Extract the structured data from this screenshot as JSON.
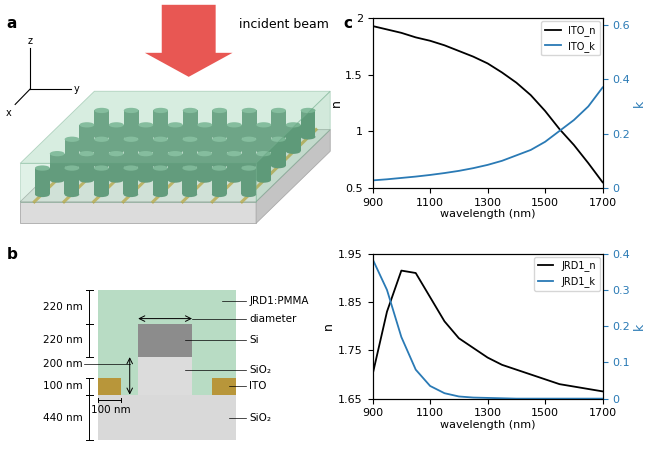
{
  "panel_labels": [
    "a",
    "b",
    "c"
  ],
  "schematic": {
    "beam_label": "incident beam",
    "axis_labels": [
      "z",
      "x",
      "y"
    ]
  },
  "cross_section": {
    "left_dimensions": [
      "220 nm",
      "220 nm",
      "200 nm",
      "100 nm",
      "440 nm"
    ],
    "bottom_dimension": "100 nm",
    "labels": [
      "JRD1:PMMA",
      "diameter",
      "Si",
      "SiO₂",
      "ITO",
      "SiO₂"
    ]
  },
  "chart_data": [
    {
      "type": "line",
      "x": [
        900,
        950,
        1000,
        1050,
        1100,
        1150,
        1200,
        1250,
        1300,
        1350,
        1400,
        1450,
        1500,
        1550,
        1600,
        1650,
        1700
      ],
      "xlim": [
        900,
        1700
      ],
      "xticks": [
        900,
        1100,
        1300,
        1500,
        1700
      ],
      "x_label": "wavelength (nm)",
      "y_label": "n",
      "y2_label": "k",
      "ylim": [
        0.5,
        2
      ],
      "yticks": [
        0.5,
        1,
        1.5,
        2
      ],
      "y2lim": [
        0,
        0.625
      ],
      "y2ticks": [
        0,
        0.2,
        0.4,
        0.6
      ],
      "legend": "upper right",
      "series": [
        {
          "name": "ITO_n",
          "color": "#000000",
          "values": [
            1.93,
            1.9,
            1.87,
            1.83,
            1.8,
            1.76,
            1.71,
            1.66,
            1.6,
            1.52,
            1.43,
            1.32,
            1.18,
            1.02,
            0.88,
            0.72,
            0.55
          ]
        },
        {
          "name": "ITO_k",
          "color": "#2a7ab5",
          "axis": "y2",
          "values": [
            0.028,
            0.032,
            0.037,
            0.042,
            0.048,
            0.055,
            0.063,
            0.073,
            0.085,
            0.1,
            0.12,
            0.14,
            0.17,
            0.21,
            0.25,
            0.3,
            0.37
          ]
        }
      ]
    },
    {
      "type": "line",
      "x": [
        900,
        950,
        1000,
        1050,
        1100,
        1150,
        1200,
        1250,
        1300,
        1350,
        1400,
        1450,
        1500,
        1550,
        1600,
        1650,
        1700
      ],
      "xlim": [
        900,
        1700
      ],
      "xticks": [
        900,
        1100,
        1300,
        1500,
        1700
      ],
      "x_label": "wavelength (nm)",
      "y_label": "n",
      "y2_label": "k",
      "ylim": [
        1.65,
        1.95
      ],
      "yticks": [
        1.65,
        1.75,
        1.85,
        1.95
      ],
      "y2lim": [
        0,
        0.4
      ],
      "y2ticks": [
        0,
        0.1,
        0.2,
        0.3,
        0.4
      ],
      "legend": "upper right",
      "series": [
        {
          "name": "JRD1_n",
          "color": "#000000",
          "values": [
            1.7,
            1.83,
            1.915,
            1.91,
            1.86,
            1.81,
            1.775,
            1.755,
            1.735,
            1.72,
            1.71,
            1.7,
            1.69,
            1.68,
            1.675,
            1.67,
            1.665
          ]
        },
        {
          "name": "JRD1_k",
          "color": "#2a7ab5",
          "axis": "y2",
          "values": [
            0.385,
            0.3,
            0.17,
            0.08,
            0.035,
            0.015,
            0.006,
            0.003,
            0.002,
            0.001,
            0,
            0,
            0,
            0,
            0,
            0,
            0
          ]
        }
      ]
    }
  ]
}
